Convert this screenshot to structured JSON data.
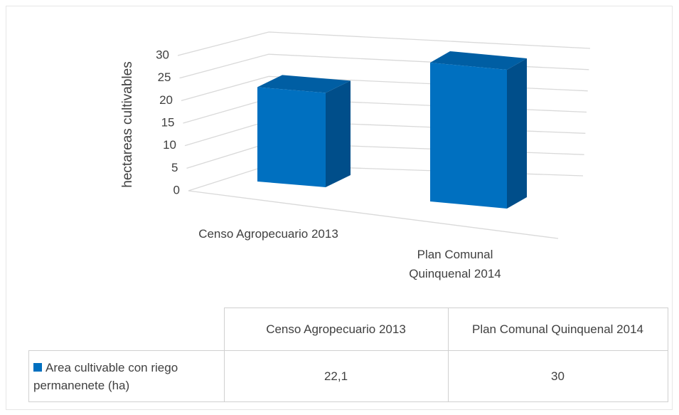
{
  "chart_data": {
    "type": "bar3d",
    "y_label": "hectareas cultivables",
    "categories": [
      "Censo Agropecuario 2013",
      "Plan Comunal Quinquenal 2014"
    ],
    "series": [
      {
        "name": "Area cultivable con riego permanenete (ha)",
        "color": "#0070c0",
        "values": [
          22.1,
          30
        ],
        "value_labels": [
          "22,1",
          "30"
        ]
      }
    ],
    "ylim": [
      0,
      30
    ],
    "yticks": [
      0,
      5,
      10,
      15,
      20,
      25,
      30
    ],
    "grid": true,
    "data_table": true
  }
}
